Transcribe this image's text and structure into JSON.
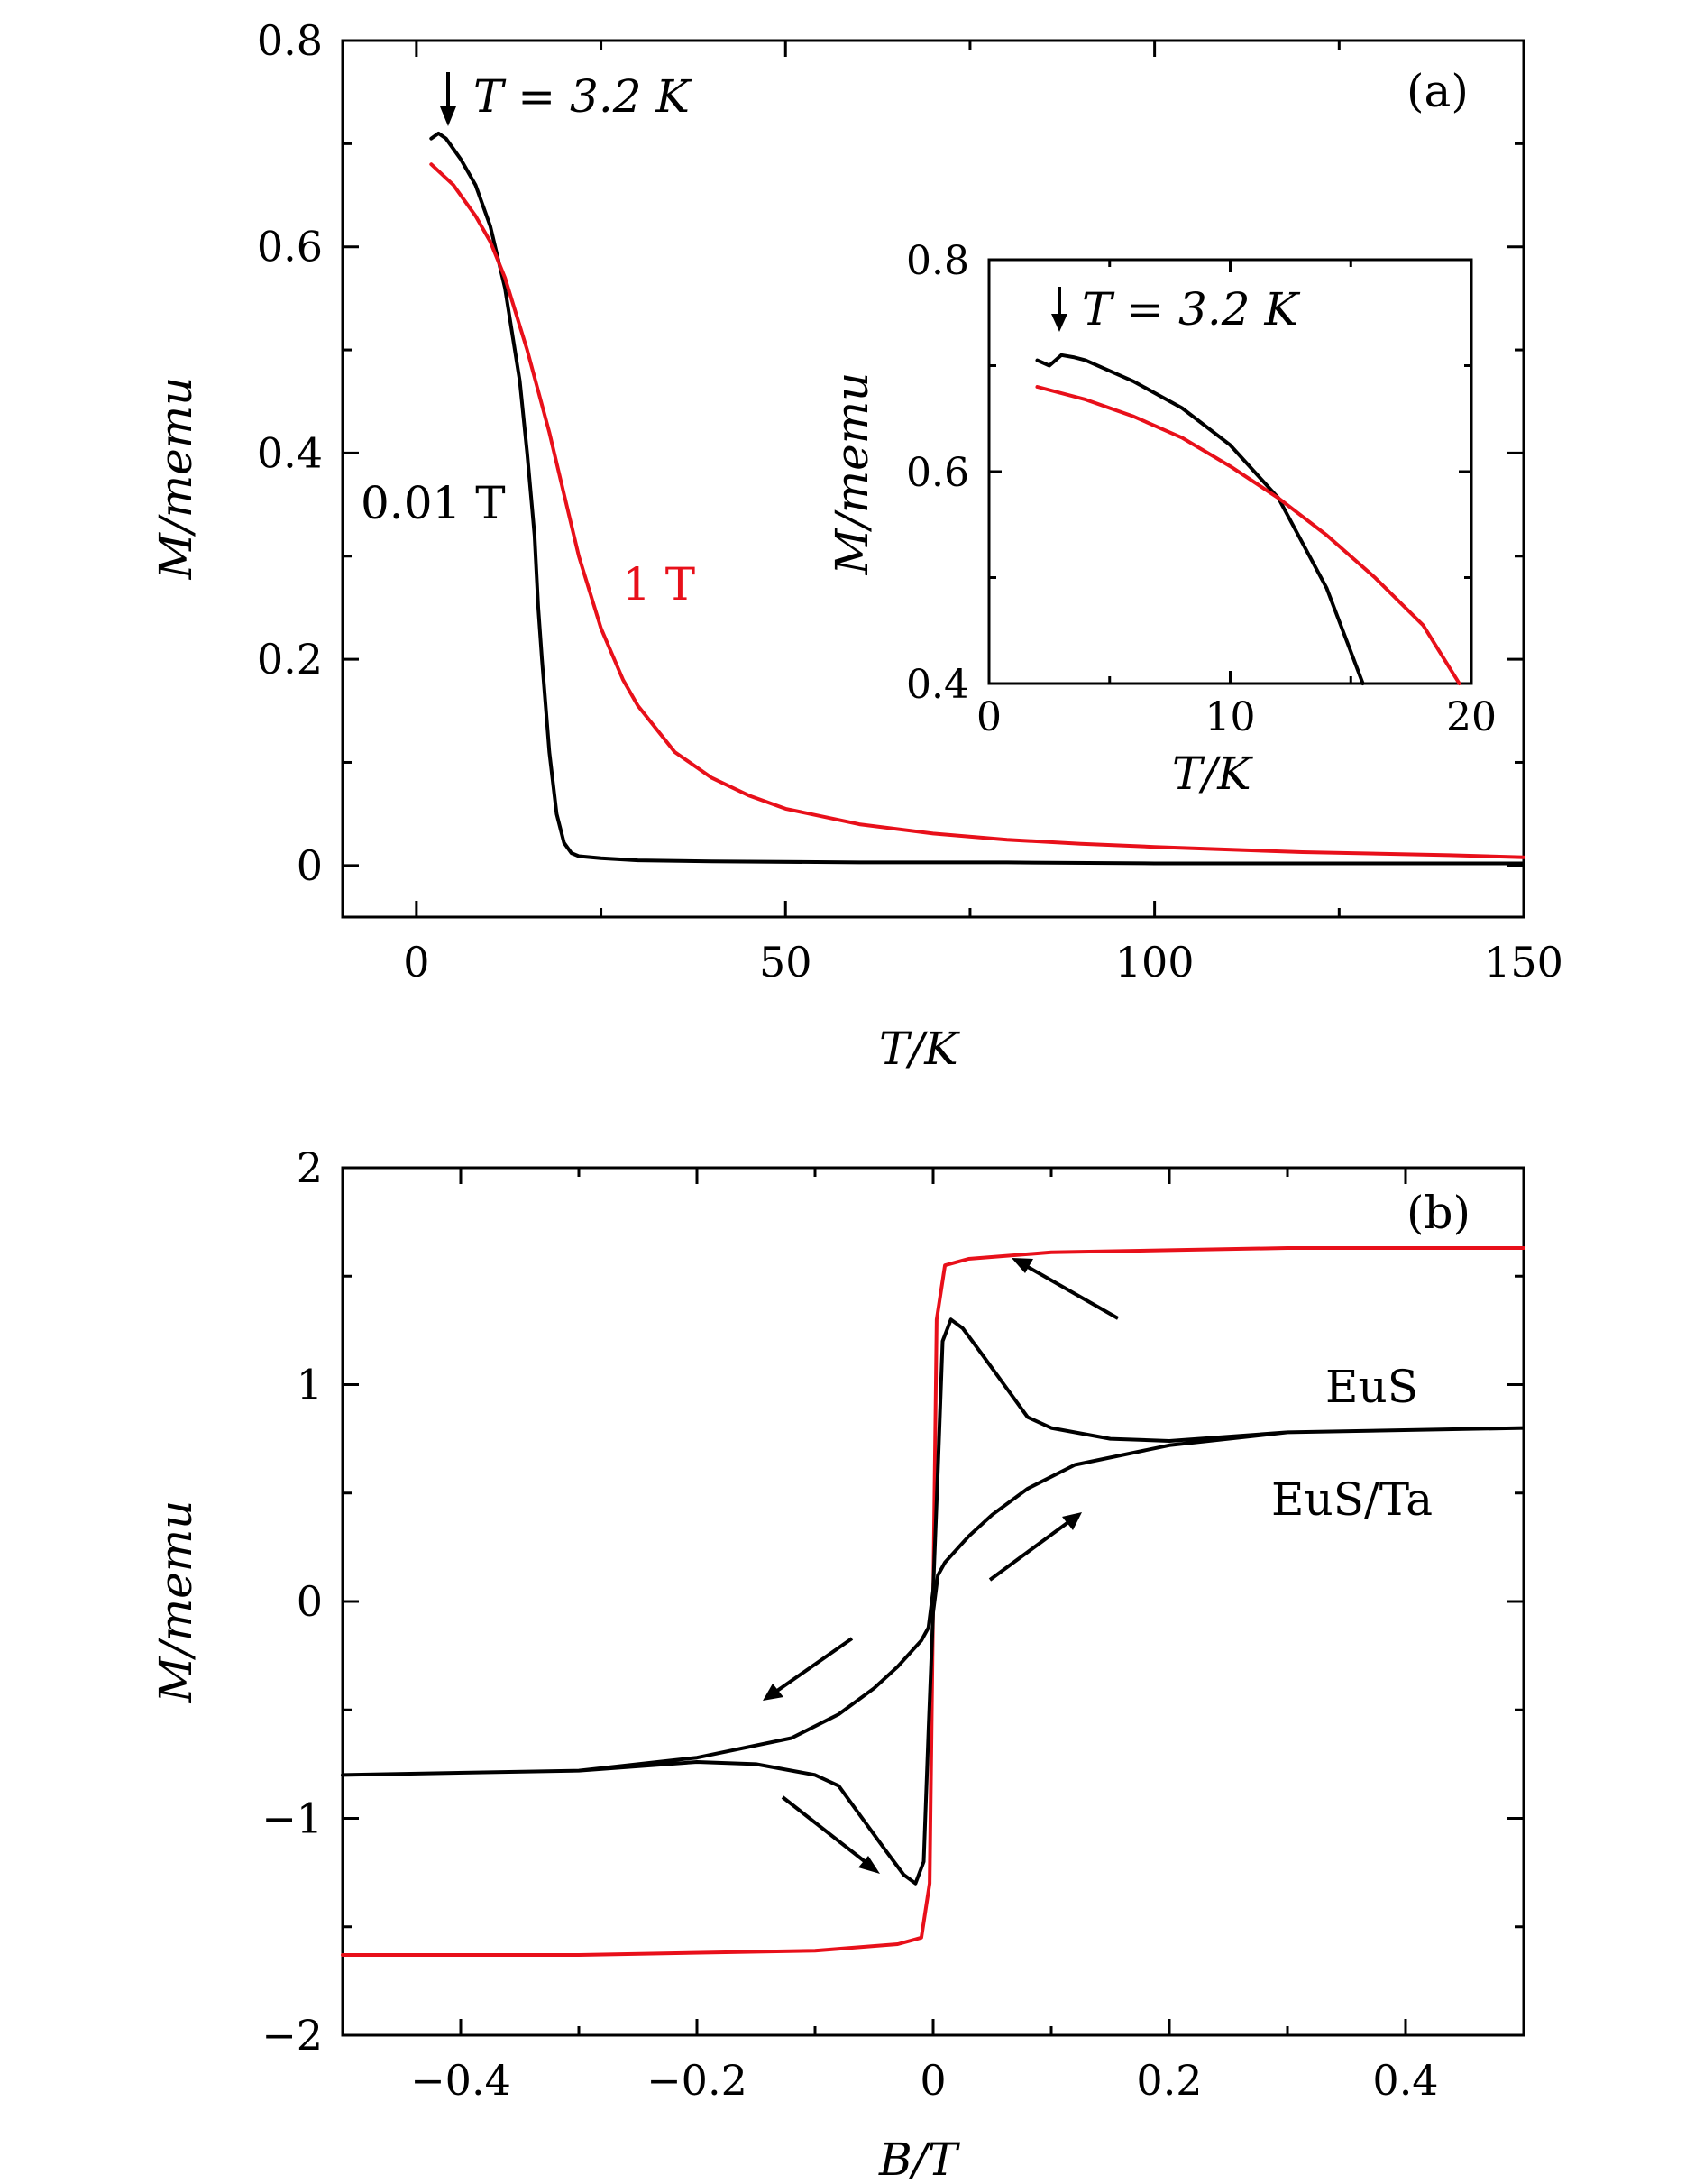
{
  "chart_data": [
    {
      "panel": "(a)",
      "type": "line",
      "xlabel": "T/K",
      "ylabel": "M/memu",
      "xlim": [
        -10,
        150
      ],
      "ylim": [
        -0.05,
        0.8
      ],
      "xticks": [
        "0",
        "50",
        "100",
        "150"
      ],
      "yticks": [
        "0",
        "0.2",
        "0.4",
        "0.6",
        "0.8"
      ],
      "annotation": "T = 3.2 K",
      "series": [
        {
          "name": "0.01 T",
          "color": "#000000",
          "x": [
            2,
            3,
            4,
            6,
            8,
            10,
            12,
            14,
            15,
            16,
            16.5,
            17,
            18,
            19,
            20,
            21,
            22,
            25,
            30,
            40,
            60,
            80,
            100,
            120,
            150
          ],
          "y": [
            0.705,
            0.71,
            0.705,
            0.685,
            0.66,
            0.62,
            0.56,
            0.47,
            0.4,
            0.32,
            0.25,
            0.2,
            0.11,
            0.05,
            0.022,
            0.012,
            0.009,
            0.007,
            0.005,
            0.004,
            0.003,
            0.003,
            0.002,
            0.002,
            0.002
          ]
        },
        {
          "name": "1 T",
          "color": "#e8101a",
          "x": [
            2,
            5,
            8,
            10,
            12,
            15,
            18,
            20,
            22,
            25,
            28,
            30,
            35,
            40,
            45,
            50,
            60,
            70,
            80,
            90,
            100,
            120,
            140,
            150
          ],
          "y": [
            0.68,
            0.66,
            0.63,
            0.605,
            0.57,
            0.5,
            0.42,
            0.36,
            0.3,
            0.23,
            0.18,
            0.155,
            0.11,
            0.085,
            0.068,
            0.055,
            0.04,
            0.031,
            0.025,
            0.021,
            0.018,
            0.013,
            0.01,
            0.008
          ]
        }
      ]
    },
    {
      "panel": "(a) inset",
      "type": "line",
      "xlabel": "T/K",
      "ylabel": "M/memu",
      "xlim": [
        0,
        20
      ],
      "ylim": [
        0.4,
        0.8
      ],
      "xticks": [
        "0",
        "10",
        "20"
      ],
      "yticks": [
        "0.4",
        "0.6",
        "0.8"
      ],
      "annotation": "T = 3.2 K",
      "series": [
        {
          "name": "0.01 T",
          "color": "#000000",
          "x": [
            2,
            2.5,
            3,
            3.5,
            4,
            6,
            8,
            10,
            12,
            14,
            15,
            15.5
          ],
          "y": [
            0.705,
            0.7,
            0.71,
            0.708,
            0.705,
            0.685,
            0.66,
            0.625,
            0.575,
            0.49,
            0.43,
            0.4
          ]
        },
        {
          "name": "1 T",
          "color": "#e8101a",
          "x": [
            2,
            4,
            6,
            8,
            10,
            12,
            14,
            16,
            18,
            19.5
          ],
          "y": [
            0.68,
            0.668,
            0.652,
            0.632,
            0.605,
            0.575,
            0.54,
            0.5,
            0.455,
            0.4
          ]
        }
      ]
    },
    {
      "panel": "(b)",
      "type": "line",
      "xlabel": "B/T",
      "ylabel": "M/memu",
      "xlim": [
        -0.5,
        0.5
      ],
      "ylim": [
        -2,
        2
      ],
      "xticks": [
        "−0.4",
        "−0.2",
        "0",
        "0.2",
        "0.4"
      ],
      "yticks": [
        "−2",
        "−1",
        "0",
        "1",
        "2"
      ],
      "series": [
        {
          "name": "EuS",
          "color": "#e8101a",
          "x": [
            -0.5,
            -0.3,
            -0.1,
            -0.03,
            -0.01,
            -0.003,
            0,
            0.003,
            0.01,
            0.03,
            0.1,
            0.3,
            0.5
          ],
          "y": [
            -1.63,
            -1.63,
            -1.61,
            -1.58,
            -1.55,
            -1.3,
            0,
            1.3,
            1.55,
            1.58,
            1.61,
            1.63,
            1.63
          ]
        },
        {
          "name": "EuS/Ta",
          "color": "#000000",
          "x": [
            0.5,
            0.3,
            0.2,
            0.15,
            0.1,
            0.08,
            0.06,
            0.04,
            0.025,
            0.015,
            0.008,
            0.004,
            0,
            -0.004,
            -0.01,
            -0.03,
            -0.05,
            -0.08,
            -0.12,
            -0.2,
            -0.3,
            -0.5,
            -0.3,
            -0.2,
            -0.15,
            -0.1,
            -0.08,
            -0.06,
            -0.04,
            -0.025,
            -0.015,
            -0.008,
            -0.004,
            0,
            0.004,
            0.01,
            0.03,
            0.05,
            0.08,
            0.12,
            0.2,
            0.3,
            0.5
          ],
          "y": [
            0.8,
            0.78,
            0.74,
            0.75,
            0.8,
            0.85,
            1.0,
            1.15,
            1.26,
            1.3,
            1.2,
            0.6,
            0.05,
            -0.12,
            -0.18,
            -0.3,
            -0.4,
            -0.52,
            -0.63,
            -0.72,
            -0.78,
            -0.8,
            -0.78,
            -0.74,
            -0.75,
            -0.8,
            -0.85,
            -1.0,
            -1.15,
            -1.26,
            -1.3,
            -1.2,
            -0.6,
            -0.05,
            0.12,
            0.18,
            0.3,
            0.4,
            0.52,
            0.63,
            0.72,
            0.78,
            0.8
          ]
        }
      ]
    }
  ],
  "panel_a": {
    "tag": "(a)",
    "arrow_label": "T = 3.2 K",
    "label_low_field": "0.01 T",
    "label_high_field": "1 T",
    "inset_arrow_label": "T = 3.2 K"
  },
  "panel_b": {
    "tag": "(b)",
    "label_eus": "EuS",
    "label_eus_ta": "EuS/Ta"
  },
  "colors": {
    "black": "#000000",
    "red": "#e8101a"
  }
}
